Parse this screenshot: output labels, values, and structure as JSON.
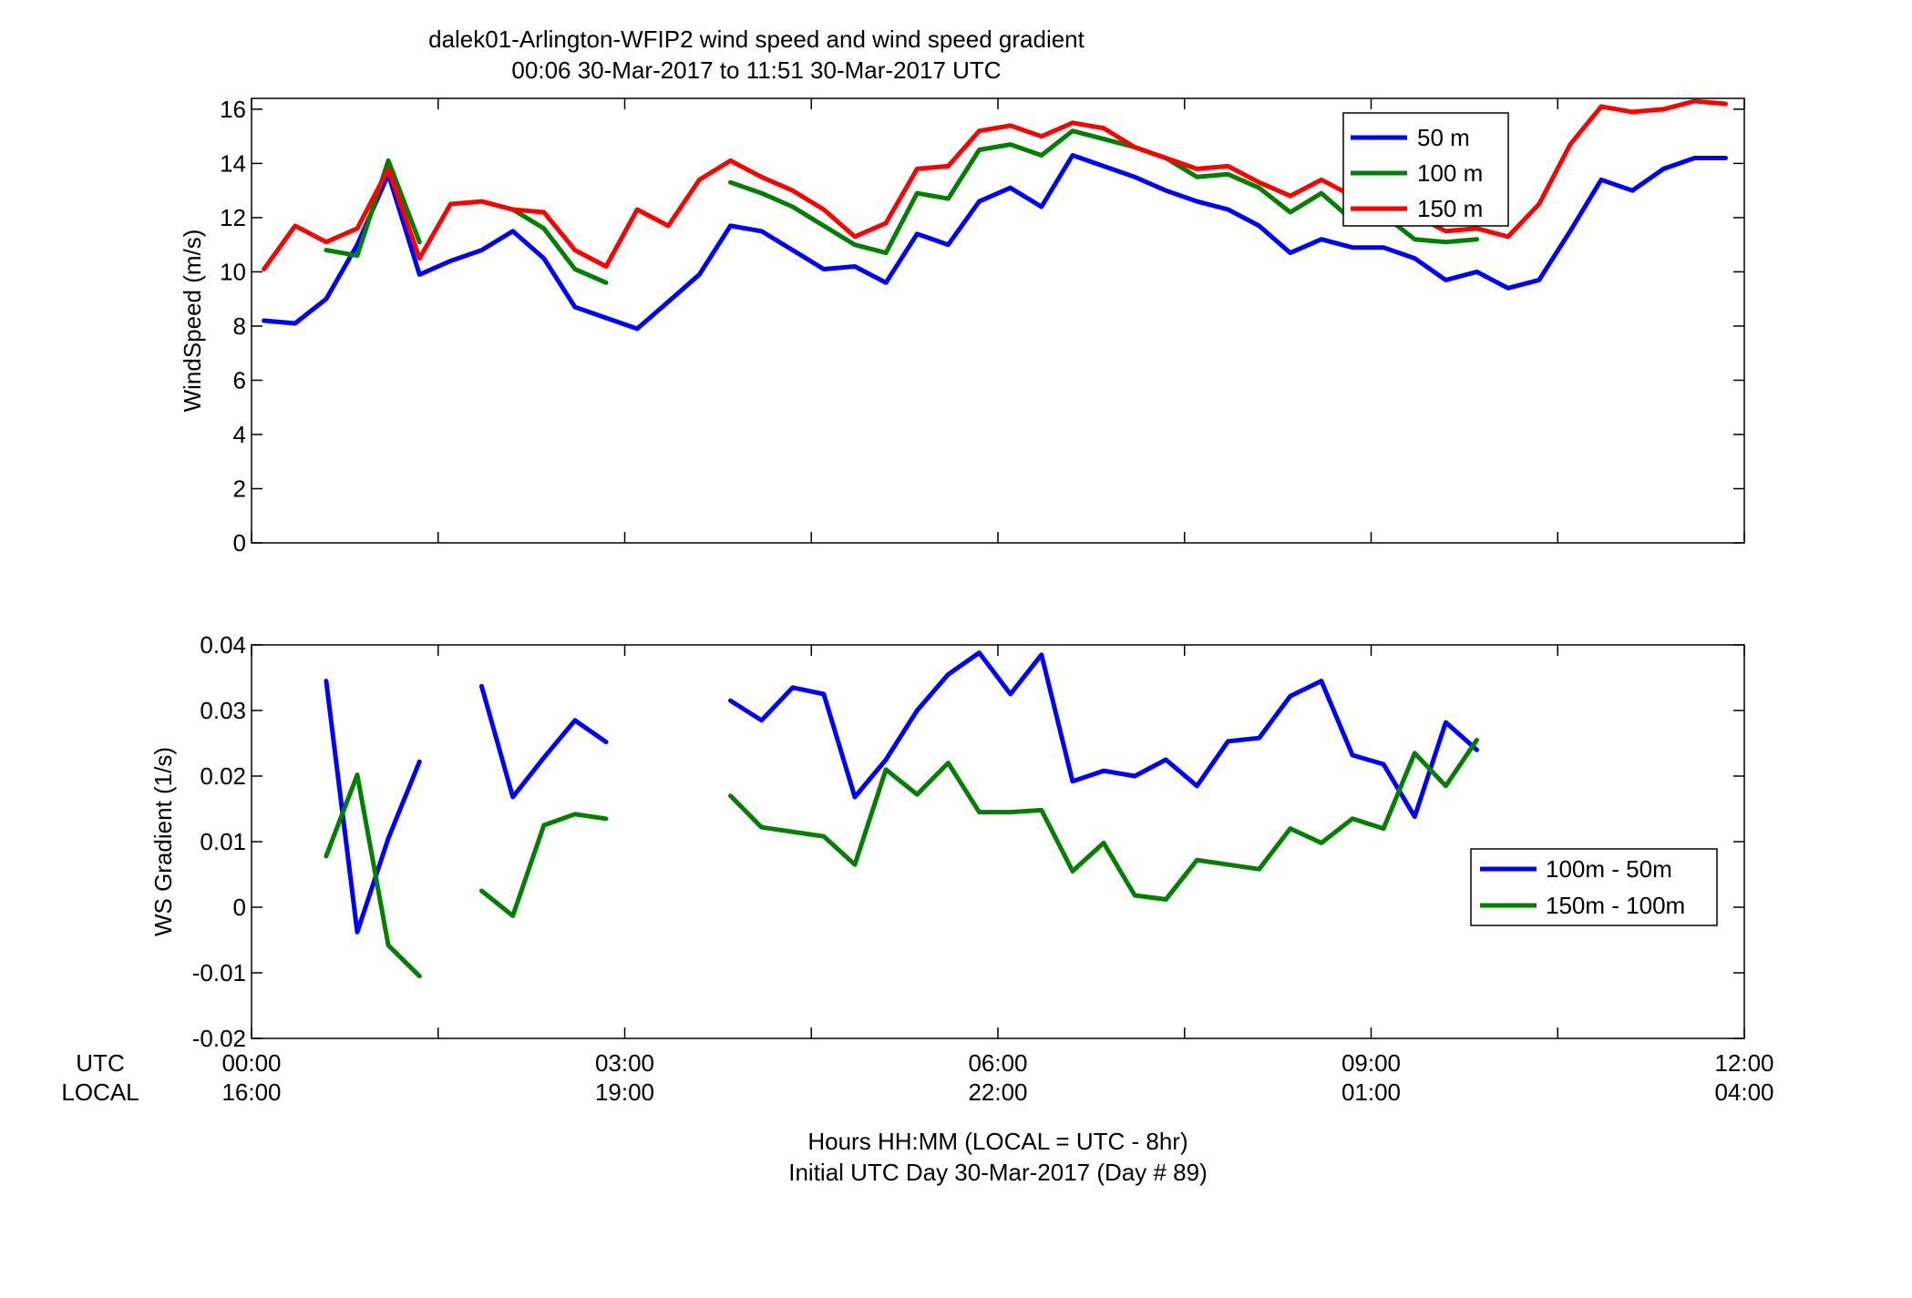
{
  "title_line1": "dalek01-Arlington-WFIP2  wind speed and wind speed gradient",
  "title_line2": "00:06 30-Mar-2017 to 11:51 30-Mar-2017  UTC",
  "xlabel_line1": "Hours HH:MM  (LOCAL = UTC - 8hr)",
  "xlabel_line2": "Initial UTC Day 30-Mar-2017 (Day # 89)",
  "row_labels": {
    "utc": "UTC",
    "local": "LOCAL"
  },
  "x_ticks": [
    {
      "utc": "00:00",
      "local": "16:00"
    },
    {
      "utc": "03:00",
      "local": "19:00"
    },
    {
      "utc": "06:00",
      "local": "22:00"
    },
    {
      "utc": "09:00",
      "local": "01:00"
    },
    {
      "utc": "12:00",
      "local": "04:00"
    }
  ],
  "colors": {
    "blue": "#0000ff",
    "green": "#007f00",
    "red": "#ff0000"
  },
  "chart_data": [
    {
      "type": "line",
      "ylabel": "WindSpeed (m/s)",
      "ylim": [
        0,
        16.4
      ],
      "yticks": [
        0,
        2,
        4,
        6,
        8,
        10,
        12,
        14,
        16
      ],
      "xlim_hours": [
        0,
        12
      ],
      "legend_placement": "top-right",
      "series": [
        {
          "name": "50 m",
          "color": "#0000ff",
          "x": [
            0.1,
            0.35,
            0.6,
            0.85,
            1.1,
            1.35,
            1.6,
            1.85,
            2.1,
            2.35,
            2.6,
            2.85,
            3.1,
            3.35,
            3.6,
            3.85,
            4.1,
            4.35,
            4.6,
            4.85,
            5.1,
            5.35,
            5.6,
            5.85,
            6.1,
            6.35,
            6.6,
            6.85,
            7.1,
            7.35,
            7.6,
            7.85,
            8.1,
            8.35,
            8.6,
            8.85,
            9.1,
            9.35,
            9.6,
            9.85,
            10.1,
            10.35,
            10.6,
            10.85,
            11.1,
            11.35,
            11.6,
            11.85
          ],
          "y": [
            8.2,
            8.1,
            9.0,
            11.0,
            13.6,
            9.9,
            10.4,
            10.8,
            11.5,
            10.5,
            8.7,
            8.3,
            7.9,
            8.9,
            9.9,
            11.7,
            11.5,
            10.8,
            10.1,
            10.2,
            9.6,
            11.4,
            11.0,
            12.6,
            13.1,
            12.4,
            14.3,
            13.9,
            13.5,
            13.0,
            12.6,
            12.3,
            11.7,
            10.7,
            11.2,
            10.9,
            10.9,
            10.5,
            9.7,
            10.0,
            9.4,
            9.7,
            11.5,
            13.4,
            13.0,
            13.8,
            14.2,
            14.2
          ]
        },
        {
          "name": "100 m",
          "color": "#007f00",
          "x": [
            0.6,
            0.85,
            1.1,
            1.35,
            null,
            1.85,
            2.1,
            2.35,
            2.6,
            2.85,
            null,
            3.85,
            4.1,
            4.35,
            4.6,
            4.85,
            5.1,
            5.35,
            5.6,
            5.85,
            6.1,
            6.35,
            6.6,
            6.85,
            7.1,
            7.35,
            7.6,
            7.85,
            8.1,
            8.35,
            8.6,
            8.85,
            9.1,
            9.35,
            9.6,
            9.85
          ],
          "y": [
            10.8,
            10.6,
            14.1,
            11.1,
            null,
            12.6,
            12.3,
            11.6,
            10.1,
            9.6,
            null,
            13.3,
            12.9,
            12.4,
            11.7,
            11.0,
            10.7,
            12.9,
            12.7,
            14.5,
            14.7,
            14.3,
            15.2,
            14.9,
            14.6,
            14.2,
            13.5,
            13.6,
            13.1,
            12.2,
            12.9,
            11.9,
            12.1,
            11.2,
            11.1,
            11.2
          ]
        },
        {
          "name": "150 m",
          "color": "#ff0000",
          "x": [
            0.1,
            0.35,
            0.6,
            0.85,
            1.1,
            1.35,
            1.6,
            1.85,
            2.1,
            2.35,
            2.6,
            2.85,
            3.1,
            3.35,
            3.6,
            3.85,
            4.1,
            4.35,
            4.6,
            4.85,
            5.1,
            5.35,
            5.6,
            5.85,
            6.1,
            6.35,
            6.6,
            6.85,
            7.1,
            7.35,
            7.6,
            7.85,
            8.1,
            8.35,
            8.6,
            8.85,
            9.1,
            9.35,
            9.6,
            9.85,
            10.1,
            10.35,
            10.6,
            10.85,
            11.1,
            11.35,
            11.6,
            11.85
          ],
          "y": [
            10.1,
            11.7,
            11.1,
            11.6,
            13.8,
            10.5,
            12.5,
            12.6,
            12.3,
            12.2,
            10.8,
            10.2,
            12.3,
            11.7,
            13.4,
            14.1,
            13.5,
            13.0,
            12.3,
            11.3,
            11.8,
            13.8,
            13.9,
            15.2,
            15.4,
            15.0,
            15.5,
            15.3,
            14.6,
            14.2,
            13.8,
            13.9,
            13.3,
            12.8,
            13.4,
            12.8,
            12.4,
            12.1,
            11.5,
            11.6,
            11.3,
            12.5,
            14.7,
            16.1,
            15.9,
            16.0,
            16.3,
            16.2
          ]
        }
      ]
    },
    {
      "type": "line",
      "ylabel": "WS Gradient (1/s)",
      "ylim": [
        -0.02,
        0.04
      ],
      "yticks": [
        -0.02,
        -0.01,
        0,
        0.01,
        0.02,
        0.03,
        0.04
      ],
      "ytick_labels": [
        "-0.02",
        "-0.01",
        "0",
        "0.01",
        "0.02",
        "0.03",
        "0.04"
      ],
      "xlim_hours": [
        0,
        12
      ],
      "legend_placement": "right",
      "series": [
        {
          "name": "100m - 50m",
          "color": "#0000ff",
          "x": [
            0.6,
            0.85,
            1.1,
            1.35,
            null,
            1.85,
            2.1,
            2.35,
            2.6,
            2.85,
            null,
            3.85,
            4.1,
            4.35,
            4.6,
            4.85,
            5.1,
            5.35,
            5.6,
            5.85,
            6.1,
            6.35,
            6.6,
            6.85,
            7.1,
            7.35,
            7.6,
            7.85,
            8.1,
            8.35,
            8.6,
            8.85,
            9.1,
            9.35,
            9.6,
            9.85
          ],
          "y": [
            0.0345,
            -0.0038,
            0.0105,
            0.0222,
            null,
            0.0337,
            0.0168,
            0.0228,
            0.0285,
            0.0252,
            null,
            0.0315,
            0.0285,
            0.0335,
            0.0325,
            0.0168,
            0.0225,
            0.03,
            0.0355,
            0.0388,
            0.0325,
            0.0385,
            0.0192,
            0.0208,
            0.02,
            0.0225,
            0.0185,
            0.0253,
            0.0258,
            0.0322,
            0.0345,
            0.0232,
            0.0218,
            0.0138,
            0.0282,
            0.024
          ]
        },
        {
          "name": "150m - 100m",
          "color": "#007f00",
          "x": [
            0.6,
            0.85,
            1.1,
            1.35,
            null,
            1.85,
            2.1,
            2.35,
            2.6,
            2.85,
            null,
            3.85,
            4.1,
            4.35,
            4.6,
            4.85,
            5.1,
            5.35,
            5.6,
            5.85,
            6.1,
            6.35,
            6.6,
            6.85,
            7.1,
            7.35,
            7.6,
            7.85,
            8.1,
            8.35,
            8.6,
            8.85,
            9.1,
            9.35,
            9.6,
            9.85
          ],
          "y": [
            0.0078,
            0.0202,
            -0.0058,
            -0.0105,
            null,
            0.0025,
            -0.0013,
            0.0125,
            0.0142,
            0.0135,
            null,
            0.017,
            0.0122,
            0.0115,
            0.0108,
            0.0065,
            0.021,
            0.0172,
            0.022,
            0.0145,
            0.0145,
            0.0148,
            0.0055,
            0.0098,
            0.0018,
            0.0012,
            0.0072,
            0.0065,
            0.0058,
            0.012,
            0.0098,
            0.0135,
            0.012,
            0.0235,
            0.0185,
            0.0255
          ]
        }
      ]
    }
  ]
}
